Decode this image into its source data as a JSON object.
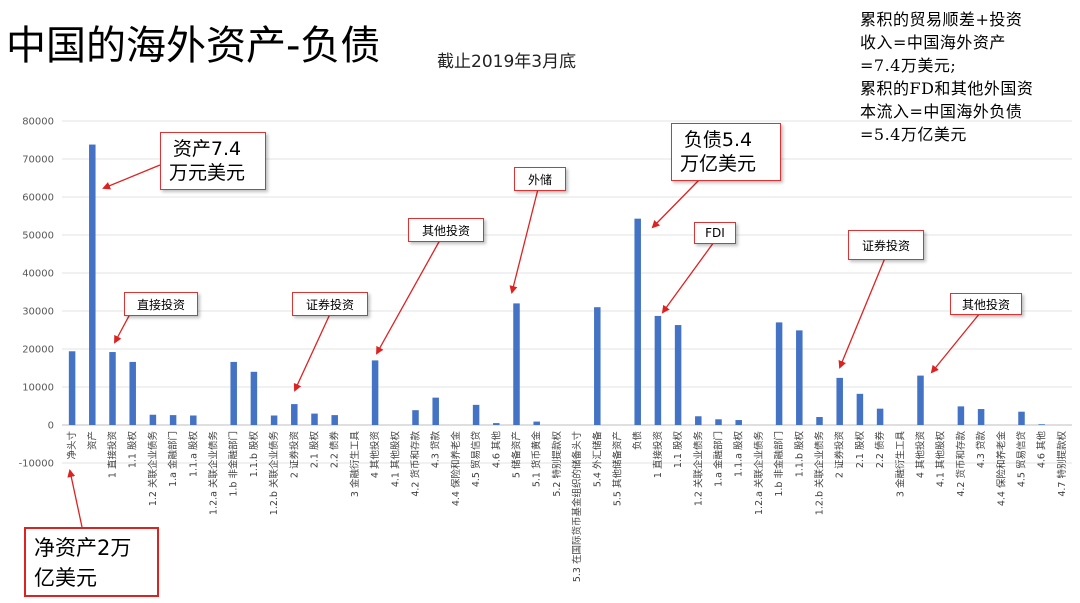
{
  "title": "中国的海外资产-负债",
  "subtitle": "截止2019年3月底",
  "side_note": "累积的贸易顺差+投资\n收入=中国海外资产\n=7.4万美元;\n累积的FD和其他外国资\n本流入=中国海外负债\n=5.4万亿美元",
  "net_box": "净资产2万\n亿美元",
  "callouts": {
    "assets": "资产7.4\n万元美元",
    "liabilities": "负债5.4\n万亿美元",
    "direct_invest": "直接投资",
    "securities_a": "证券投资",
    "other_a": "其他投资",
    "reserves": "外储",
    "fdi": "FDI",
    "securities_l": "证券投资",
    "other_l": "其他投资"
  },
  "colors": {
    "bar": "#4472C4",
    "callout_border": "#dd3333",
    "arrow": "#dd2222"
  },
  "chart_data": {
    "type": "bar",
    "title": "",
    "xlabel": "",
    "ylabel": "",
    "ylim": [
      -10000,
      80000
    ],
    "yticks": [
      -10000,
      0,
      10000,
      20000,
      30000,
      40000,
      50000,
      60000,
      70000,
      80000
    ],
    "grid": true,
    "categories": [
      "净头寸",
      "资产",
      "1 直接投资",
      "1.1 股权",
      "1.2 关联企业债务",
      "1.a 金融部门",
      "1.1.a 股权",
      "1.2.a 关联企业债务",
      "1.b 非金融部门",
      "1.1.b 股权",
      "1.2.b 关联企业债务",
      "2 证券投资",
      "2.1 股权",
      "2.2 债券",
      "3 金融衍生工具",
      "4 其他投资",
      "4.1 其他股权",
      "4.2 货币和存款",
      "4.3 贷款",
      "4.4 保险和养老金",
      "4.5 贸易信贷",
      "4.6 其他",
      "5 储备资产",
      "5.1 货币黄金",
      "5.2 特别提款权",
      "5.3 在国际货币基金组织的储备头寸",
      "5.4 外汇储备",
      "5.5 其他储备资产",
      "负债",
      "1 直接投资",
      "1.1 股权",
      "1.2 关联企业债务",
      "1.a 金融部门",
      "1.1.a 股权",
      "1.2.a 关联企业债务",
      "1.b 非金融部门",
      "1.1.b 股权",
      "1.2.b 关联企业债务",
      "2 证券投资",
      "2.1 股权",
      "2.2 债券",
      "3 金融衍生工具",
      "4 其他投资",
      "4.1 其他股权",
      "4.2 货币和存款",
      "4.3 贷款",
      "4.4 保险和养老金",
      "4.5 贸易信贷",
      "4.6 其他",
      "4.7 特别提款权"
    ],
    "values": [
      19400,
      73800,
      19200,
      16600,
      2700,
      2600,
      2500,
      0,
      16600,
      14000,
      2500,
      5500,
      3000,
      2600,
      0,
      17000,
      0,
      3900,
      7200,
      0,
      5300,
      500,
      32000,
      900,
      0,
      0,
      31000,
      0,
      54300,
      28700,
      26300,
      2300,
      1500,
      1300,
      0,
      27000,
      24900,
      2100,
      12400,
      8200,
      4300,
      0,
      13000,
      0,
      4900,
      4200,
      0,
      3500,
      200,
      0
    ]
  }
}
